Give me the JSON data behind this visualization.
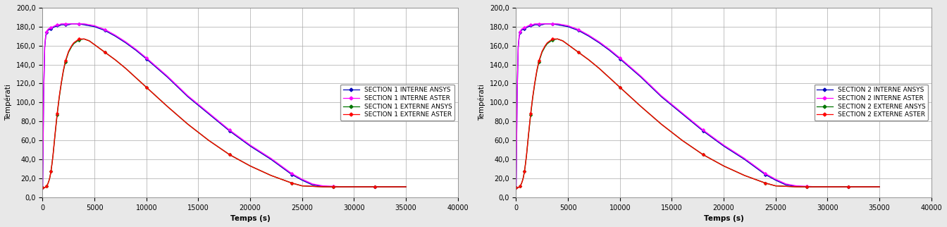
{
  "charts": [
    {
      "xlabel": "Temps (s)",
      "ylabel": "Températi",
      "xlim": [
        0,
        40000
      ],
      "ylim": [
        0,
        200
      ],
      "yticks": [
        0,
        20,
        40,
        60,
        80,
        100,
        120,
        140,
        160,
        180,
        200
      ],
      "ytick_labels": [
        "0,0",
        "20,0",
        "40,0",
        "60,0",
        "80,0",
        "100,0",
        "120,0",
        "140,0",
        "160,0",
        "180,0",
        "200,0"
      ],
      "xticks": [
        0,
        5000,
        10000,
        15000,
        20000,
        25000,
        30000,
        35000,
        40000
      ],
      "xtick_labels": [
        "0",
        "5000",
        "10000",
        "15000",
        "20000",
        "25000",
        "30000",
        "35000",
        "40000"
      ],
      "legend": [
        {
          "label": "SECTION 1 INTERNE ANSYS",
          "color": "#0000bb",
          "marker": "D"
        },
        {
          "label": "SECTION 1 INTERNE ASTER",
          "color": "#ff00ff",
          "marker": "D"
        },
        {
          "label": "SECTION 1 EXTERNE ANSYS",
          "color": "#007700",
          "marker": "D"
        },
        {
          "label": "SECTION 1 EXTERNE ASTER",
          "color": "#ff0000",
          "marker": "D"
        }
      ],
      "series": [
        {
          "name": "interne_ansys",
          "color": "#0000bb",
          "x": [
            0,
            100,
            200,
            300,
            400,
            500,
            600,
            700,
            800,
            900,
            1000,
            1200,
            1400,
            1600,
            1800,
            2000,
            2200,
            2500,
            2800,
            3000,
            3500,
            4000,
            4500,
            5000,
            6000,
            7000,
            8000,
            9000,
            10000,
            12000,
            14000,
            16000,
            18000,
            20000,
            22000,
            23000,
            24000,
            25000,
            26000,
            27000,
            28000,
            29000,
            30000,
            31000,
            32000,
            33000,
            34000,
            35000
          ],
          "y": [
            10,
            110,
            158,
            170,
            174,
            176,
            177,
            177,
            178,
            178,
            179,
            180,
            181,
            181,
            182,
            182,
            182,
            182,
            183,
            183,
            183,
            182,
            181,
            180,
            176,
            170,
            163,
            155,
            146,
            127,
            106,
            88,
            70,
            54,
            40,
            32,
            24,
            18,
            13,
            11.5,
            11,
            11,
            11,
            11,
            11,
            11,
            11,
            11
          ]
        },
        {
          "name": "interne_aster",
          "color": "#ff00ff",
          "x": [
            0,
            100,
            200,
            300,
            400,
            500,
            600,
            700,
            800,
            900,
            1000,
            1200,
            1400,
            1600,
            1800,
            2000,
            2200,
            2500,
            2800,
            3000,
            3500,
            4000,
            4500,
            5000,
            6000,
            7000,
            8000,
            9000,
            10000,
            12000,
            14000,
            16000,
            18000,
            20000,
            22000,
            23000,
            24000,
            25000,
            26000,
            27000,
            28000,
            29000,
            30000,
            31000,
            32000,
            33000,
            34000,
            35000
          ],
          "y": [
            10,
            110,
            158,
            171,
            175,
            177,
            178,
            178,
            179,
            179,
            180,
            181,
            182,
            182,
            183,
            183,
            183,
            183,
            183,
            183,
            183,
            183,
            182,
            181,
            177,
            171,
            164,
            156,
            147,
            128,
            107,
            89,
            71,
            55,
            41,
            33,
            25,
            19,
            14,
            12,
            11.5,
            11,
            11,
            11,
            11,
            11,
            11,
            11
          ]
        },
        {
          "name": "externe_ansys",
          "color": "#007700",
          "x": [
            0,
            100,
            200,
            300,
            400,
            500,
            600,
            700,
            800,
            900,
            1000,
            1200,
            1400,
            1600,
            1800,
            2000,
            2200,
            2500,
            2800,
            3000,
            3500,
            4000,
            4500,
            5000,
            6000,
            7000,
            8000,
            9000,
            10000,
            12000,
            14000,
            16000,
            18000,
            20000,
            22000,
            23000,
            24000,
            25000,
            26000,
            27000,
            28000,
            29000,
            30000,
            31000,
            32000,
            33000,
            34000,
            35000
          ],
          "y": [
            10,
            10,
            10,
            11,
            12,
            14,
            17,
            21,
            27,
            35,
            44,
            66,
            87,
            105,
            120,
            133,
            143,
            153,
            159,
            162,
            166,
            167,
            165,
            161,
            153,
            145,
            136,
            126,
            116,
            96,
            77,
            60,
            45,
            33,
            23,
            19,
            15,
            12,
            11.5,
            11,
            11,
            11,
            11,
            11,
            11,
            11,
            11,
            11
          ]
        },
        {
          "name": "externe_aster",
          "color": "#ff0000",
          "x": [
            0,
            100,
            200,
            300,
            400,
            500,
            600,
            700,
            800,
            900,
            1000,
            1200,
            1400,
            1600,
            1800,
            2000,
            2200,
            2500,
            2800,
            3000,
            3500,
            4000,
            4500,
            5000,
            6000,
            7000,
            8000,
            9000,
            10000,
            12000,
            14000,
            16000,
            18000,
            20000,
            22000,
            23000,
            24000,
            25000,
            26000,
            27000,
            28000,
            29000,
            30000,
            31000,
            32000,
            33000,
            34000,
            35000
          ],
          "y": [
            10,
            10,
            10,
            11,
            12,
            14,
            17,
            21,
            27,
            35,
            44,
            67,
            88,
            106,
            121,
            134,
            144,
            154,
            160,
            163,
            167,
            167,
            165,
            161,
            153,
            145,
            136,
            126,
            116,
            96,
            77,
            60,
            45,
            33,
            23,
            19,
            15,
            12,
            11.5,
            11,
            11,
            11,
            11,
            11,
            11,
            11,
            11,
            11
          ]
        }
      ]
    },
    {
      "xlabel": "Temps (s)",
      "ylabel": "Températi",
      "xlim": [
        0,
        40000
      ],
      "ylim": [
        0,
        200
      ],
      "yticks": [
        0,
        20,
        40,
        60,
        80,
        100,
        120,
        140,
        160,
        180,
        200
      ],
      "ytick_labels": [
        "0,0",
        "20,0",
        "40,0",
        "60,0",
        "80,0",
        "100,0",
        "120,0",
        "140,0",
        "160,0",
        "180,0",
        "200,0"
      ],
      "xticks": [
        0,
        5000,
        10000,
        15000,
        20000,
        25000,
        30000,
        35000,
        40000
      ],
      "xtick_labels": [
        "0",
        "5000",
        "10000",
        "15000",
        "20000",
        "25000",
        "30000",
        "35000",
        "40000"
      ],
      "legend": [
        {
          "label": "SECTION 2 INTERNE ANSYS",
          "color": "#0000bb",
          "marker": "D"
        },
        {
          "label": "SECTION 2 INTERNE ASTER",
          "color": "#ff00ff",
          "marker": "D"
        },
        {
          "label": "SECTION 2 EXTERNE ANSYS",
          "color": "#007700",
          "marker": "D"
        },
        {
          "label": "SECTION 2 EXTERNE ASTER",
          "color": "#ff0000",
          "marker": "D"
        }
      ],
      "series": [
        {
          "name": "interne_ansys",
          "color": "#0000bb",
          "x": [
            0,
            100,
            200,
            300,
            400,
            500,
            600,
            700,
            800,
            900,
            1000,
            1200,
            1400,
            1600,
            1800,
            2000,
            2200,
            2500,
            2800,
            3000,
            3500,
            4000,
            4500,
            5000,
            6000,
            7000,
            8000,
            9000,
            10000,
            12000,
            14000,
            16000,
            18000,
            20000,
            22000,
            23000,
            24000,
            25000,
            26000,
            27000,
            28000,
            29000,
            30000,
            31000,
            32000,
            33000,
            34000,
            35000
          ],
          "y": [
            10,
            110,
            158,
            170,
            174,
            176,
            177,
            177,
            178,
            178,
            179,
            180,
            181,
            181,
            182,
            182,
            182,
            182,
            183,
            183,
            183,
            182,
            181,
            180,
            176,
            170,
            163,
            155,
            146,
            127,
            106,
            88,
            70,
            54,
            40,
            32,
            24,
            18,
            13,
            11.5,
            11,
            11,
            11,
            11,
            11,
            11,
            11,
            11
          ]
        },
        {
          "name": "interne_aster",
          "color": "#ff00ff",
          "x": [
            0,
            100,
            200,
            300,
            400,
            500,
            600,
            700,
            800,
            900,
            1000,
            1200,
            1400,
            1600,
            1800,
            2000,
            2200,
            2500,
            2800,
            3000,
            3500,
            4000,
            4500,
            5000,
            6000,
            7000,
            8000,
            9000,
            10000,
            12000,
            14000,
            16000,
            18000,
            20000,
            22000,
            23000,
            24000,
            25000,
            26000,
            27000,
            28000,
            29000,
            30000,
            31000,
            32000,
            33000,
            34000,
            35000
          ],
          "y": [
            10,
            110,
            158,
            171,
            175,
            177,
            178,
            178,
            179,
            179,
            180,
            181,
            182,
            182,
            183,
            183,
            183,
            183,
            183,
            183,
            183,
            183,
            182,
            181,
            177,
            171,
            164,
            156,
            147,
            128,
            107,
            89,
            71,
            55,
            41,
            33,
            25,
            19,
            14,
            12,
            11.5,
            11,
            11,
            11,
            11,
            11,
            11,
            11
          ]
        },
        {
          "name": "externe_ansys",
          "color": "#007700",
          "x": [
            0,
            100,
            200,
            300,
            400,
            500,
            600,
            700,
            800,
            900,
            1000,
            1200,
            1400,
            1600,
            1800,
            2000,
            2200,
            2500,
            2800,
            3000,
            3500,
            4000,
            4500,
            5000,
            6000,
            7000,
            8000,
            9000,
            10000,
            12000,
            14000,
            16000,
            18000,
            20000,
            22000,
            23000,
            24000,
            25000,
            26000,
            27000,
            28000,
            29000,
            30000,
            31000,
            32000,
            33000,
            34000,
            35000
          ],
          "y": [
            10,
            10,
            10,
            11,
            12,
            14,
            17,
            21,
            27,
            35,
            44,
            66,
            87,
            105,
            120,
            133,
            143,
            153,
            159,
            162,
            166,
            167,
            165,
            161,
            153,
            145,
            136,
            126,
            116,
            96,
            77,
            60,
            45,
            33,
            23,
            19,
            15,
            12,
            11.5,
            11,
            11,
            11,
            11,
            11,
            11,
            11,
            11,
            11
          ]
        },
        {
          "name": "externe_aster",
          "color": "#ff0000",
          "x": [
            0,
            100,
            200,
            300,
            400,
            500,
            600,
            700,
            800,
            900,
            1000,
            1200,
            1400,
            1600,
            1800,
            2000,
            2200,
            2500,
            2800,
            3000,
            3500,
            4000,
            4500,
            5000,
            6000,
            7000,
            8000,
            9000,
            10000,
            12000,
            14000,
            16000,
            18000,
            20000,
            22000,
            23000,
            24000,
            25000,
            26000,
            27000,
            28000,
            29000,
            30000,
            31000,
            32000,
            33000,
            34000,
            35000
          ],
          "y": [
            10,
            10,
            10,
            11,
            12,
            14,
            17,
            21,
            27,
            35,
            44,
            67,
            88,
            106,
            121,
            134,
            144,
            154,
            160,
            163,
            167,
            167,
            165,
            161,
            153,
            145,
            136,
            126,
            116,
            96,
            77,
            60,
            45,
            33,
            23,
            19,
            15,
            12,
            11.5,
            11,
            11,
            11,
            11,
            11,
            11,
            11,
            11,
            11
          ]
        }
      ]
    }
  ],
  "bg_color": "#e8e8e8",
  "plot_bg_color": "#ffffff",
  "grid_color": "#aaaaaa",
  "legend_fontsize": 6.5,
  "axis_label_fontsize": 7.5,
  "tick_fontsize": 7,
  "marker_size": 2.5,
  "linewidth": 1.0
}
